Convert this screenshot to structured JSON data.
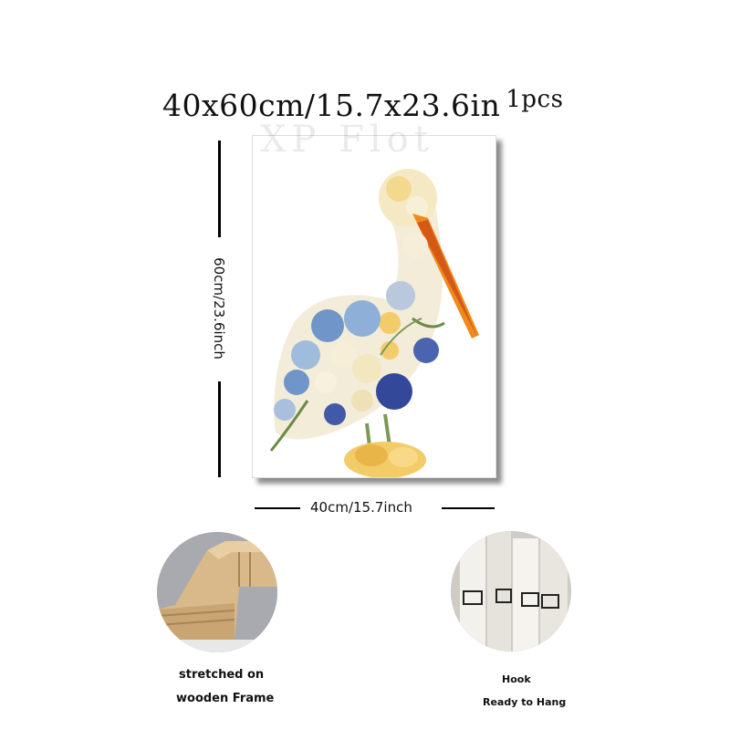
{
  "header": {
    "size": "40x60cm/15.7x23.6in",
    "quantity": "1pcs"
  },
  "watermark_text": "XP Flot",
  "dimensions": {
    "height_label": "60cm/23.6inch",
    "width_label": "40cm/15.7inch"
  },
  "features": [
    {
      "line1": "stretched on",
      "line2": "wooden Frame"
    },
    {
      "line1": "Hook",
      "line2": "Ready to Hang"
    }
  ],
  "colors": {
    "beak": "#f08a1c",
    "petal_blue": "#6f95c9",
    "petal_cream": "#f3e7c0",
    "petal_yellow": "#f3cc6a",
    "leaf": "#6b8a4a"
  }
}
